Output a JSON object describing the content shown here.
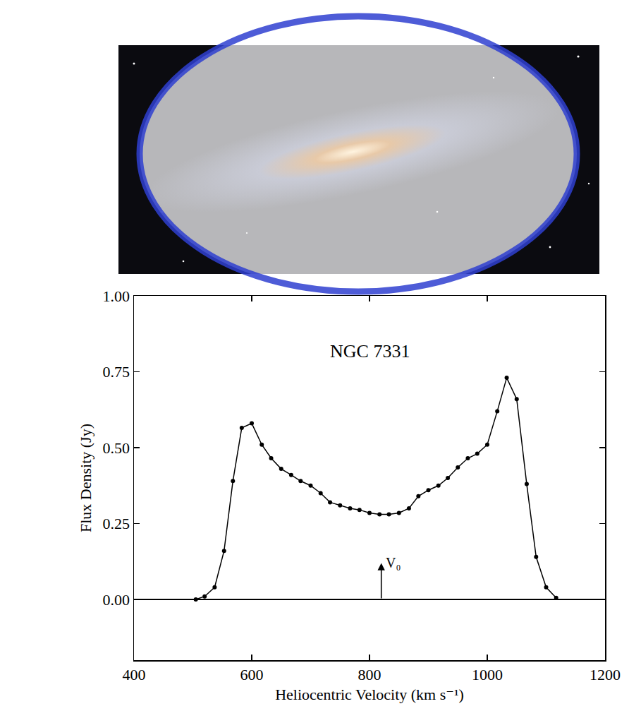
{
  "chart_data": {
    "type": "line",
    "title": "NGC 7331",
    "x_label": "Heliocentric Velocity (km s⁻¹)",
    "y_label": "Flux Density (Jy)",
    "x": [
      505,
      520,
      537,
      553,
      568,
      583,
      600,
      617,
      633,
      650,
      667,
      683,
      700,
      717,
      733,
      750,
      767,
      783,
      800,
      817,
      833,
      850,
      867,
      883,
      900,
      917,
      933,
      950,
      967,
      983,
      1000,
      1017,
      1033,
      1050,
      1067,
      1083,
      1100,
      1117
    ],
    "values": [
      0.0,
      0.01,
      0.04,
      0.16,
      0.39,
      0.565,
      0.58,
      0.51,
      0.465,
      0.43,
      0.41,
      0.39,
      0.375,
      0.35,
      0.32,
      0.31,
      0.3,
      0.295,
      0.285,
      0.28,
      0.28,
      0.285,
      0.3,
      0.34,
      0.36,
      0.375,
      0.4,
      0.435,
      0.465,
      0.48,
      0.51,
      0.62,
      0.73,
      0.66,
      0.38,
      0.14,
      0.04,
      0.005
    ],
    "color": "#000000",
    "marker": "circle",
    "line_style": "solid",
    "xlim": [
      400,
      1200
    ],
    "xticks": [
      400,
      600,
      800,
      1000,
      1200
    ],
    "ylim": [
      -0.2,
      1.0
    ],
    "yticks": [
      {
        "value": 0,
        "label": "0.00"
      },
      0.25,
      {
        "value": 0.5,
        "label": "0.50"
      },
      0.75,
      {
        "value": 1,
        "label": "1.00"
      }
    ],
    "grid": false,
    "annotations": [
      {
        "text": "V₀",
        "x": 820,
        "y": 0.12,
        "arrow": true
      }
    ]
  }
}
